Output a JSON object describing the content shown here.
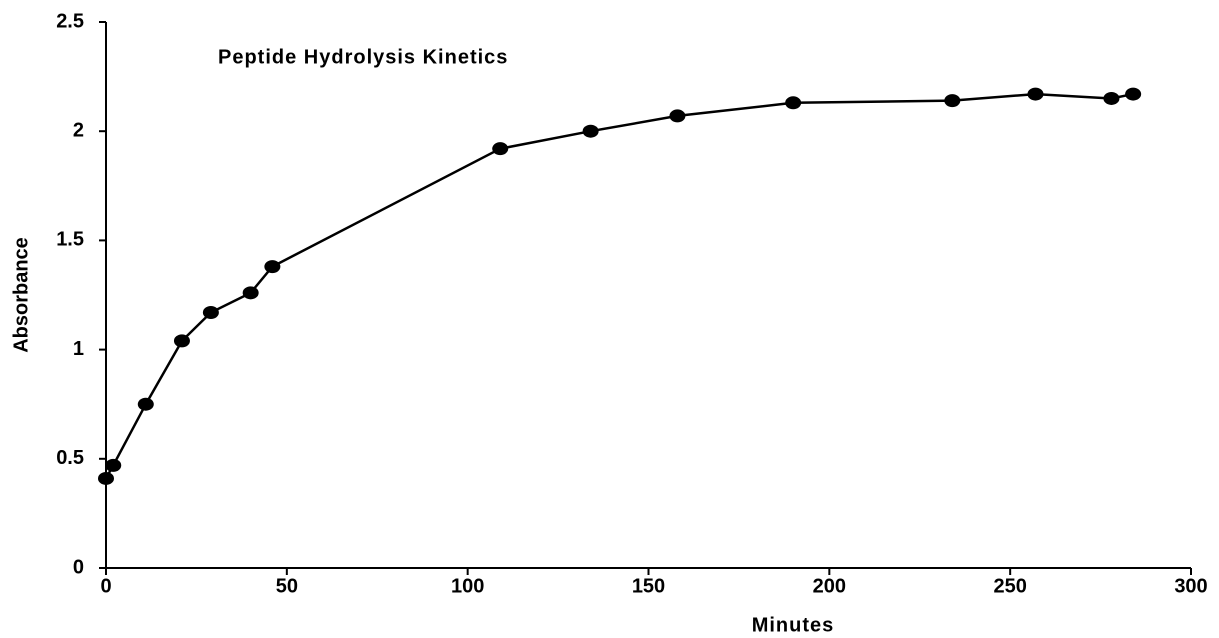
{
  "chart_data": {
    "type": "line",
    "title": "Peptide Hydrolysis Kinetics",
    "x_label": "Minutes",
    "y_label": "Absorbance",
    "x": [
      0,
      2,
      11,
      21,
      29,
      40,
      46,
      109,
      134,
      158,
      190,
      234,
      257,
      278,
      284
    ],
    "series": [
      {
        "name": "Absorbance",
        "color": "#000000",
        "values": [
          0.41,
          0.47,
          0.75,
          1.04,
          1.17,
          1.26,
          1.38,
          1.92,
          2.0,
          2.07,
          2.13,
          2.14,
          2.17,
          2.15,
          2.17
        ]
      }
    ],
    "xlim": [
      0,
      300
    ],
    "xticks": [
      0,
      50,
      100,
      150,
      200,
      250,
      300
    ],
    "ylim": [
      0,
      2.5
    ],
    "yticks": [
      0,
      0.5,
      1,
      1.5,
      2,
      2.5
    ],
    "grid": false
  }
}
